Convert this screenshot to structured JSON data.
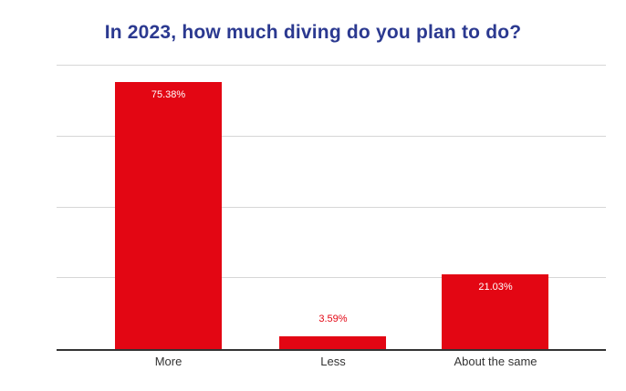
{
  "chart_data": {
    "type": "bar",
    "title": "In 2023, how much diving do you plan to do?",
    "categories": [
      "More",
      "Less",
      "About the same"
    ],
    "values": [
      75.38,
      3.59,
      21.03
    ],
    "value_labels": [
      "75.38%",
      "3.59%",
      "21.03%"
    ],
    "xlabel": "",
    "ylabel": "",
    "ylim": [
      0,
      80
    ],
    "gridline_values": [
      20,
      40,
      60,
      80
    ],
    "grid": true,
    "legend_position": "none",
    "y_axis_tick_labels_visible": false,
    "colors": {
      "bar": "#e30613",
      "title": "#2b3990",
      "value_label_inside": "#ffffff",
      "value_label_outside": "#e30613",
      "category_label": "#333333",
      "gridline": "#d6d6d6",
      "axis": "#333333",
      "background": "#ffffff"
    }
  }
}
